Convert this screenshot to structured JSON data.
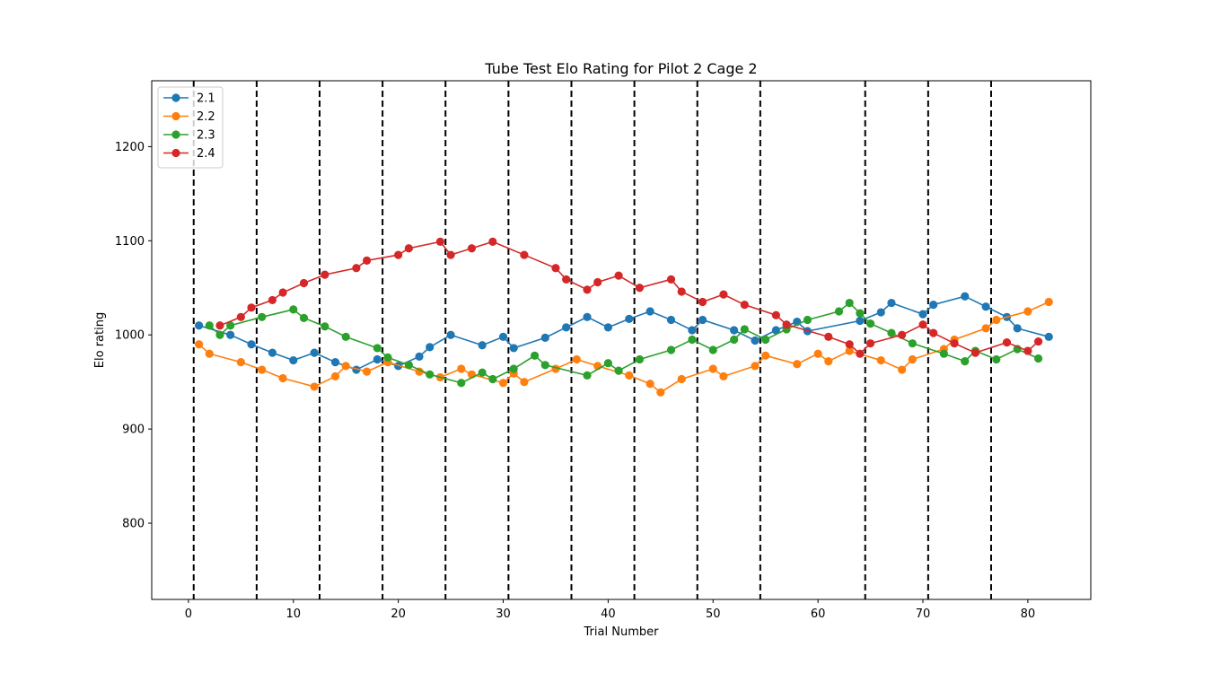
{
  "chart_data": {
    "type": "line",
    "title": "Tube Test Elo Rating for Pilot 2 Cage 2",
    "xlabel": "Trial Number",
    "ylabel": "Elo rating",
    "xlim": [
      -3.5,
      86
    ],
    "ylim": [
      719,
      1270
    ],
    "xticks": [
      0,
      10,
      20,
      30,
      40,
      50,
      60,
      70,
      80
    ],
    "yticks": [
      800,
      900,
      1000,
      1100,
      1200
    ],
    "grid": false,
    "legend_position": "top-left",
    "session_boundaries": [
      0.5,
      6.5,
      12.5,
      18.5,
      24.5,
      30.5,
      36.5,
      42.5,
      48.5,
      54.5,
      64.5,
      70.5,
      76.5
    ],
    "series": [
      {
        "name": "2.1",
        "color": "#1f77b4",
        "x": [
          1,
          4,
          6,
          8,
          10,
          12,
          14,
          16,
          18,
          20,
          22,
          23,
          25,
          28,
          30,
          31,
          34,
          36,
          38,
          40,
          42,
          44,
          46,
          48,
          49,
          52,
          54,
          56,
          58,
          59,
          64,
          66,
          67,
          70,
          71,
          74,
          76,
          78,
          79,
          82
        ],
        "y": [
          1010,
          1000,
          990,
          981,
          973,
          981,
          971,
          963,
          974,
          967,
          977,
          987,
          1000,
          989,
          998,
          986,
          997,
          1008,
          1019,
          1008,
          1017,
          1025,
          1016,
          1005,
          1016,
          1005,
          994,
          1005,
          1014,
          1004,
          1015,
          1024,
          1034,
          1022,
          1032,
          1041,
          1030,
          1019,
          1007,
          998
        ]
      },
      {
        "name": "2.2",
        "color": "#ff7f0e",
        "x": [
          1,
          2,
          5,
          7,
          9,
          12,
          14,
          15,
          17,
          19,
          22,
          24,
          26,
          27,
          30,
          31,
          32,
          35,
          37,
          39,
          42,
          44,
          45,
          47,
          50,
          51,
          54,
          55,
          58,
          60,
          61,
          63,
          66,
          68,
          69,
          72,
          73,
          76,
          77,
          80,
          82
        ],
        "y": [
          990,
          980,
          971,
          963,
          954,
          945,
          956,
          967,
          961,
          971,
          961,
          955,
          964,
          958,
          949,
          959,
          950,
          964,
          974,
          967,
          957,
          948,
          939,
          953,
          964,
          956,
          967,
          978,
          969,
          980,
          972,
          983,
          973,
          963,
          974,
          985,
          995,
          1007,
          1016,
          1025,
          1035
        ]
      },
      {
        "name": "2.3",
        "color": "#2ca02c",
        "x": [
          2,
          3,
          4,
          7,
          10,
          11,
          13,
          15,
          18,
          19,
          21,
          23,
          26,
          28,
          29,
          31,
          33,
          34,
          38,
          40,
          41,
          43,
          46,
          48,
          50,
          52,
          53,
          55,
          57,
          59,
          62,
          63,
          64,
          65,
          67,
          69,
          72,
          74,
          75,
          77,
          79,
          81
        ],
        "y": [
          1010,
          1000,
          1010,
          1019,
          1027,
          1018,
          1009,
          998,
          986,
          976,
          968,
          958,
          949,
          960,
          953,
          964,
          978,
          968,
          957,
          970,
          962,
          974,
          984,
          995,
          984,
          995,
          1006,
          995,
          1006,
          1016,
          1025,
          1034,
          1023,
          1012,
          1002,
          991,
          980,
          972,
          983,
          974,
          985,
          975
        ]
      },
      {
        "name": "2.4",
        "color": "#d62728",
        "x": [
          3,
          5,
          6,
          8,
          9,
          11,
          13,
          16,
          17,
          20,
          21,
          24,
          25,
          27,
          29,
          32,
          35,
          36,
          38,
          39,
          41,
          43,
          46,
          47,
          49,
          51,
          53,
          56,
          57,
          61,
          63,
          64,
          65,
          68,
          70,
          71,
          73,
          75,
          78,
          80,
          81
        ],
        "y": [
          1010,
          1019,
          1029,
          1037,
          1045,
          1055,
          1064,
          1071,
          1079,
          1085,
          1092,
          1099,
          1085,
          1092,
          1099,
          1085,
          1071,
          1059,
          1048,
          1056,
          1063,
          1050,
          1059,
          1046,
          1035,
          1043,
          1032,
          1021,
          1011,
          998,
          990,
          980,
          991,
          1000,
          1011,
          1002,
          991,
          981,
          992,
          983,
          993
        ]
      }
    ]
  }
}
